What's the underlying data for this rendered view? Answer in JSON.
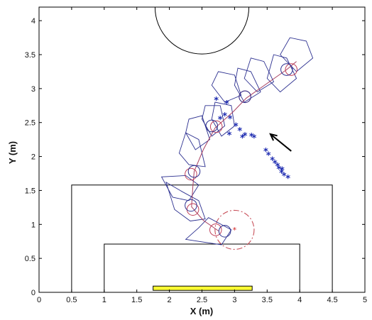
{
  "chart_data": {
    "type": "scatter",
    "xlabel": "X (m)",
    "ylabel": "Y (m)",
    "xlim": [
      0,
      5
    ],
    "ylim": [
      0,
      4.2
    ],
    "xticks": [
      "0",
      "0.5",
      "1",
      "1.5",
      "2",
      "2.5",
      "3",
      "3.5",
      "4",
      "4.5",
      "5"
    ],
    "yticks": [
      "0",
      "0.5",
      "1",
      "1.5",
      "2",
      "2.5",
      "3",
      "3.5",
      "4"
    ],
    "field_lines": {
      "outer_box": [
        [
          0.5,
          0
        ],
        [
          0.5,
          1.58
        ],
        [
          4.5,
          1.58
        ],
        [
          4.5,
          0
        ]
      ],
      "inner_box": [
        [
          1.0,
          0
        ],
        [
          1.0,
          0.71
        ],
        [
          4.0,
          0.71
        ],
        [
          4.0,
          0
        ]
      ],
      "center_circle": {
        "cx": 2.5,
        "cy": 4.2,
        "r": 0.72
      }
    },
    "goal": {
      "x0": 1.75,
      "x1": 3.27,
      "y0": 0,
      "y1": 0.05,
      "color": "#ffff33"
    },
    "trajectory": [
      [
        2.76,
        0.9
      ],
      [
        2.52,
        1.06
      ],
      [
        2.34,
        1.26
      ],
      [
        2.36,
        1.55
      ],
      [
        2.38,
        1.78
      ],
      [
        2.52,
        2.1
      ],
      [
        2.7,
        2.42
      ],
      [
        2.98,
        2.66
      ],
      [
        3.18,
        2.86
      ],
      [
        3.46,
        3.05
      ],
      [
        3.8,
        3.28
      ],
      [
        3.95,
        3.4
      ]
    ],
    "robot_circles": {
      "blue": [
        [
          2.85,
          0.9
        ],
        [
          2.33,
          1.28
        ],
        [
          2.38,
          1.78
        ],
        [
          2.65,
          2.45
        ],
        [
          3.16,
          2.88
        ],
        [
          3.8,
          3.28
        ]
      ],
      "red": [
        [
          2.71,
          0.92
        ],
        [
          2.36,
          1.22
        ],
        [
          2.33,
          1.74
        ],
        [
          2.72,
          2.44
        ],
        [
          3.16,
          2.88
        ],
        [
          3.87,
          3.28
        ]
      ],
      "radius": 0.09
    },
    "robot_outlines": [
      [
        [
          2.25,
          0.78
        ],
        [
          2.45,
          0.95
        ],
        [
          2.6,
          1.1
        ],
        [
          2.95,
          0.92
        ],
        [
          2.8,
          0.7
        ],
        [
          2.45,
          0.75
        ]
      ],
      [
        [
          1.95,
          1.62
        ],
        [
          2.2,
          1.48
        ],
        [
          2.45,
          1.35
        ],
        [
          2.55,
          1.08
        ],
        [
          2.32,
          1.05
        ],
        [
          2.08,
          1.22
        ]
      ],
      [
        [
          1.88,
          1.7
        ],
        [
          2.05,
          1.4
        ],
        [
          2.3,
          1.35
        ],
        [
          2.45,
          1.58
        ],
        [
          2.25,
          1.72
        ]
      ],
      [
        [
          2.15,
          2.05
        ],
        [
          2.3,
          1.88
        ],
        [
          2.55,
          1.85
        ],
        [
          2.45,
          2.25
        ],
        [
          2.25,
          2.35
        ]
      ],
      [
        [
          2.25,
          2.35
        ],
        [
          2.4,
          2.1
        ],
        [
          2.62,
          2.25
        ],
        [
          2.5,
          2.6
        ],
        [
          2.3,
          2.55
        ]
      ],
      [
        [
          2.5,
          2.55
        ],
        [
          2.65,
          2.3
        ],
        [
          2.85,
          2.45
        ],
        [
          2.78,
          2.75
        ],
        [
          2.55,
          2.75
        ]
      ],
      [
        [
          2.65,
          2.55
        ],
        [
          2.8,
          2.3
        ],
        [
          3.0,
          2.45
        ],
        [
          2.95,
          2.75
        ],
        [
          2.7,
          2.8
        ]
      ],
      [
        [
          2.65,
          3.05
        ],
        [
          2.85,
          2.8
        ],
        [
          3.1,
          2.9
        ],
        [
          3.0,
          3.2
        ],
        [
          2.75,
          3.25
        ]
      ],
      [
        [
          3.0,
          3.05
        ],
        [
          3.15,
          2.8
        ],
        [
          3.4,
          2.95
        ],
        [
          3.25,
          3.25
        ],
        [
          3.05,
          3.3
        ]
      ],
      [
        [
          3.15,
          3.15
        ],
        [
          3.35,
          2.95
        ],
        [
          3.6,
          3.1
        ],
        [
          3.45,
          3.4
        ],
        [
          3.25,
          3.45
        ]
      ],
      [
        [
          3.5,
          3.15
        ],
        [
          3.7,
          2.95
        ],
        [
          3.95,
          3.15
        ],
        [
          3.8,
          3.45
        ],
        [
          3.6,
          3.5
        ]
      ],
      [
        [
          3.7,
          3.5
        ],
        [
          3.95,
          3.25
        ],
        [
          4.2,
          3.45
        ],
        [
          4.1,
          3.7
        ],
        [
          3.85,
          3.75
        ]
      ]
    ],
    "ball_marks": [
      [
        2.72,
        2.83
      ],
      [
        2.88,
        2.78
      ],
      [
        2.78,
        2.55
      ],
      [
        2.85,
        2.6
      ],
      [
        2.93,
        2.56
      ],
      [
        3.02,
        2.45
      ],
      [
        3.08,
        2.38
      ],
      [
        3.16,
        2.31
      ],
      [
        3.26,
        2.3
      ],
      [
        3.3,
        2.28
      ],
      [
        3.48,
        2.08
      ],
      [
        3.52,
        2.02
      ],
      [
        3.58,
        1.95
      ],
      [
        3.62,
        1.9
      ],
      [
        3.68,
        1.82
      ],
      [
        3.72,
        1.76
      ],
      [
        3.76,
        1.72
      ],
      [
        3.82,
        1.68
      ],
      [
        3.66,
        1.86
      ],
      [
        3.73,
        1.8
      ],
      [
        2.92,
        2.32
      ],
      [
        3.12,
        2.28
      ]
    ],
    "target": {
      "cx": 3.0,
      "cy": 0.92,
      "r": 0.3
    },
    "direction_arrow": {
      "from": [
        3.87,
        2.08
      ],
      "to": [
        3.55,
        2.33
      ]
    }
  }
}
